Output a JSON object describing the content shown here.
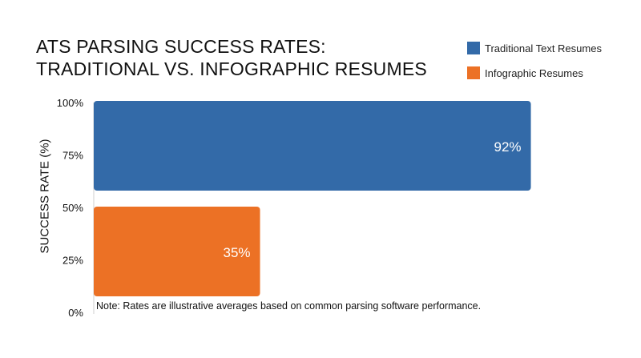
{
  "chart_data": {
    "type": "bar",
    "orientation": "horizontal",
    "title_lines": [
      "ATS PARSING SUCCESS RATES:",
      "TRADITIONAL VS. INFOGRAPHIC RESUMES"
    ],
    "ylabel": "SUCCESS RATE (%)",
    "yticks": [
      "100%",
      "75%",
      "50%",
      "25%",
      "0%"
    ],
    "ylim": [
      0,
      100
    ],
    "series": [
      {
        "name": "Traditional Text Resumes",
        "value": 92,
        "label": "92%",
        "color": "#336aa8"
      },
      {
        "name": "Infographic Resumes",
        "value": 35,
        "label": "35%",
        "color": "#ec7125"
      }
    ],
    "legend_position": "top-right",
    "note": "Note: Rates are illustrative averages based on common parsing software performance.",
    "grid": false
  }
}
